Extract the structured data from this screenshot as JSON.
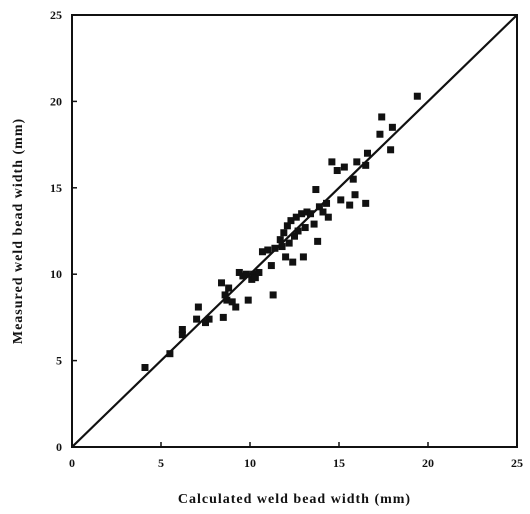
{
  "chart_data": {
    "type": "scatter",
    "title": "",
    "xlabel": "Calculated weld bead width (mm)",
    "ylabel": "Measured weld bead width (mm)",
    "xlim": [
      0,
      25
    ],
    "ylim": [
      0,
      25
    ],
    "xticks": [
      "0",
      "5",
      "10",
      "15",
      "20",
      "25"
    ],
    "yticks": [
      "0",
      "5",
      "10",
      "15",
      "20",
      "25"
    ],
    "grid": false,
    "marker": "square",
    "marker_color": "#111111",
    "reference_line": {
      "type": "identity",
      "x": [
        0,
        25
      ],
      "y": [
        0,
        25
      ]
    },
    "points": [
      [
        4.1,
        4.6
      ],
      [
        5.5,
        5.4
      ],
      [
        6.2,
        6.5
      ],
      [
        6.2,
        6.8
      ],
      [
        7.0,
        7.4
      ],
      [
        7.1,
        8.1
      ],
      [
        7.5,
        7.2
      ],
      [
        7.7,
        7.4
      ],
      [
        8.5,
        7.5
      ],
      [
        8.4,
        9.5
      ],
      [
        8.6,
        8.8
      ],
      [
        8.7,
        8.5
      ],
      [
        8.8,
        9.2
      ],
      [
        9.0,
        8.4
      ],
      [
        9.2,
        8.1
      ],
      [
        9.4,
        10.1
      ],
      [
        9.6,
        9.9
      ],
      [
        9.8,
        10.0
      ],
      [
        9.9,
        8.5
      ],
      [
        10.1,
        9.7
      ],
      [
        10.2,
        10.0
      ],
      [
        10.3,
        9.8
      ],
      [
        10.5,
        10.1
      ],
      [
        10.7,
        11.3
      ],
      [
        11.0,
        11.4
      ],
      [
        11.2,
        10.5
      ],
      [
        11.3,
        8.8
      ],
      [
        11.4,
        11.5
      ],
      [
        11.7,
        12.0
      ],
      [
        11.8,
        11.6
      ],
      [
        11.9,
        12.4
      ],
      [
        12.0,
        11.0
      ],
      [
        12.1,
        12.8
      ],
      [
        12.2,
        11.8
      ],
      [
        12.3,
        13.1
      ],
      [
        12.4,
        10.7
      ],
      [
        12.5,
        12.2
      ],
      [
        12.6,
        13.3
      ],
      [
        12.7,
        12.5
      ],
      [
        12.9,
        13.5
      ],
      [
        13.0,
        11.0
      ],
      [
        13.1,
        12.7
      ],
      [
        13.2,
        13.6
      ],
      [
        13.4,
        13.5
      ],
      [
        13.6,
        12.9
      ],
      [
        13.7,
        14.9
      ],
      [
        13.8,
        11.9
      ],
      [
        13.9,
        13.9
      ],
      [
        14.1,
        13.6
      ],
      [
        14.3,
        14.1
      ],
      [
        14.4,
        13.3
      ],
      [
        14.6,
        16.5
      ],
      [
        14.9,
        16.0
      ],
      [
        15.1,
        14.3
      ],
      [
        15.3,
        16.2
      ],
      [
        15.6,
        14.0
      ],
      [
        15.8,
        15.5
      ],
      [
        15.9,
        14.6
      ],
      [
        16.0,
        16.5
      ],
      [
        16.5,
        14.1
      ],
      [
        16.5,
        16.3
      ],
      [
        16.6,
        17.0
      ],
      [
        17.3,
        18.1
      ],
      [
        17.4,
        19.1
      ],
      [
        17.9,
        17.2
      ],
      [
        18.0,
        18.5
      ],
      [
        19.4,
        20.3
      ]
    ]
  }
}
